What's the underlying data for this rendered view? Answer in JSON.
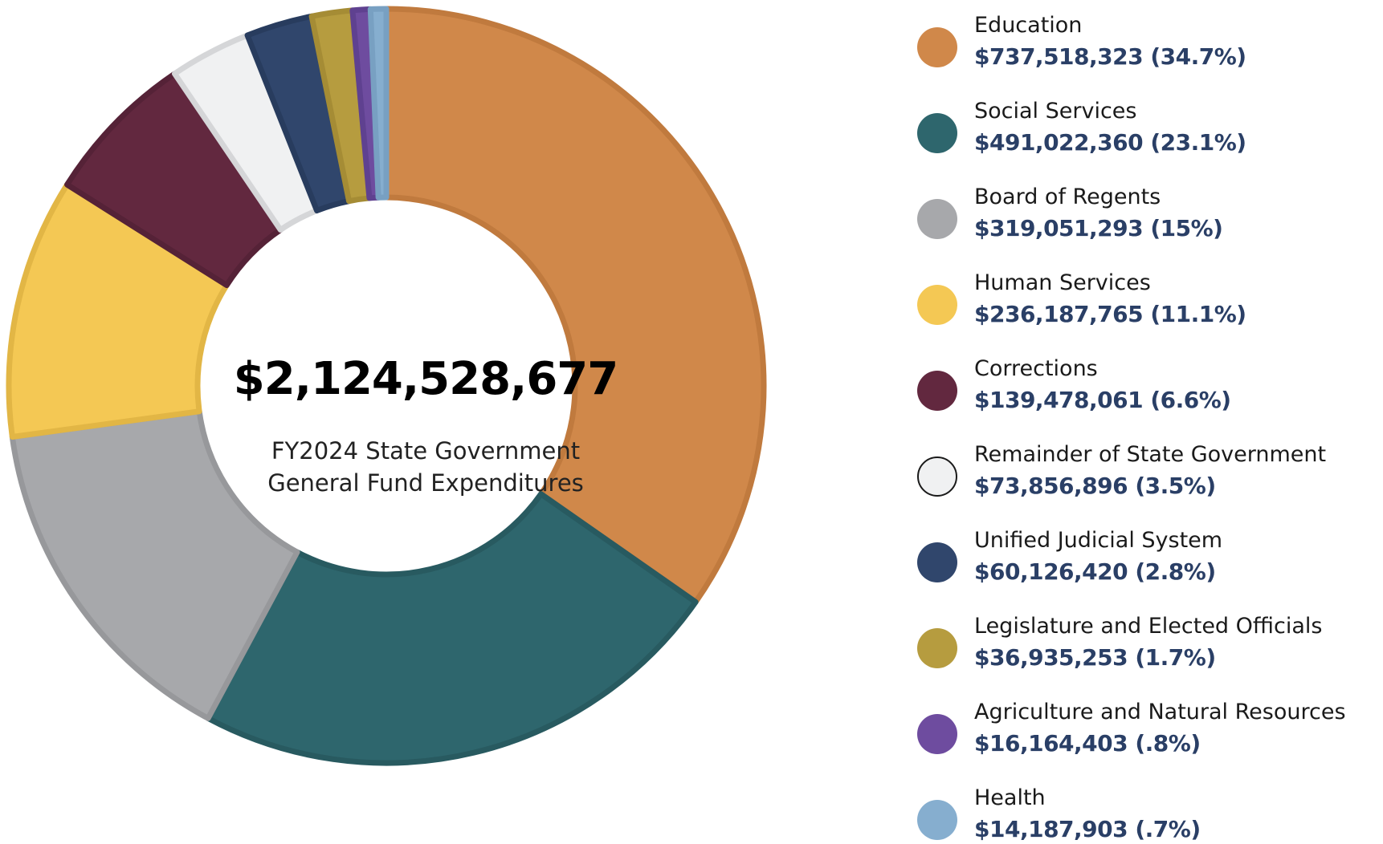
{
  "chart_data": {
    "type": "pie",
    "variant": "donut",
    "center": {
      "total": "$2,124,528,677",
      "caption_lines": [
        "FY2024 State Government",
        "General Fund Expenditures"
      ]
    },
    "legend_position": "right",
    "slices": [
      {
        "name": "Education",
        "value": 737518323,
        "percent_label": "34.7%",
        "display": "$737,518,323 (34.7%)",
        "color": "#D0884A",
        "stroke": "#C07A3E"
      },
      {
        "name": "Social Services",
        "value": 491022360,
        "percent_label": "23.1%",
        "display": "$491,022,360 (23.1%)",
        "color": "#2E666D",
        "stroke": "#285A60"
      },
      {
        "name": "Board of Regents",
        "value": 319051293,
        "percent_label": "15%",
        "display": "$319,051,293 (15%)",
        "color": "#A7A8AB",
        "stroke": "#97989B"
      },
      {
        "name": "Human Services",
        "value": 236187765,
        "percent_label": "11.1%",
        "display": "$236,187,765 (11.1%)",
        "color": "#F4C854",
        "stroke": "#E2B645"
      },
      {
        "name": "Corrections",
        "value": 139478061,
        "percent_label": "6.6%",
        "display": "$139,478,061 (6.6%)",
        "color": "#62283F",
        "stroke": "#552237"
      },
      {
        "name": "Remainder of State Government",
        "value": 73856896,
        "percent_label": "3.5%",
        "display": "$73,856,896 (3.5%)",
        "color": "#F0F1F2",
        "stroke": "#D5D6D8"
      },
      {
        "name": "Unified Judicial System",
        "value": 60126420,
        "percent_label": "2.8%",
        "display": "$60,126,420 (2.8%)",
        "color": "#30466C",
        "stroke": "#283C5E"
      },
      {
        "name": "Legislature and Elected Officials",
        "value": 36935253,
        "percent_label": "1.7%",
        "display": "$36,935,253 (1.7%)",
        "color": "#B69C3F",
        "stroke": "#A58C35"
      },
      {
        "name": "Agriculture and Natural Resources",
        "value": 16164403,
        "percent_label": ".8%",
        "display": "$16,164,403 (.8%)",
        "color": "#6E4C9F",
        "stroke": "#5F4190"
      },
      {
        "name": "Health",
        "value": 14187903,
        "percent_label": ".7%",
        "display": "$14,187,903 (.7%)",
        "color": "#86AECF",
        "stroke": "#78A0C2"
      }
    ]
  }
}
